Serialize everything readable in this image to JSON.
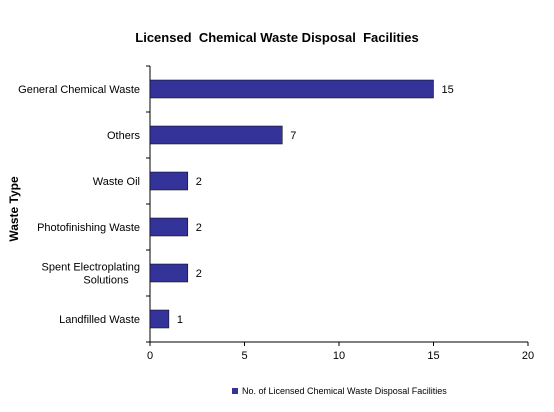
{
  "chart_data": {
    "type": "bar",
    "orientation": "horizontal",
    "title": "Licensed  Chemical Waste Disposal  Facilities",
    "ylabel": "Waste Type",
    "xlabel": "",
    "categories": [
      [
        "General Chemical Waste"
      ],
      [
        "Others"
      ],
      [
        "Waste Oil"
      ],
      [
        "Photofinishing Waste"
      ],
      [
        "Spent Electroplating",
        "Solutions"
      ],
      [
        "Landfilled Waste"
      ]
    ],
    "series": [
      {
        "name": "No. of Licensed Chemical Waste Disposal Facilities",
        "values": [
          15,
          7,
          2,
          2,
          2,
          1
        ],
        "color": "#333399"
      }
    ],
    "xlim": [
      0,
      20
    ],
    "xticks": [
      0,
      5,
      10,
      15,
      20
    ],
    "data_labels": true,
    "grid": false,
    "legend_position": "bottom"
  }
}
